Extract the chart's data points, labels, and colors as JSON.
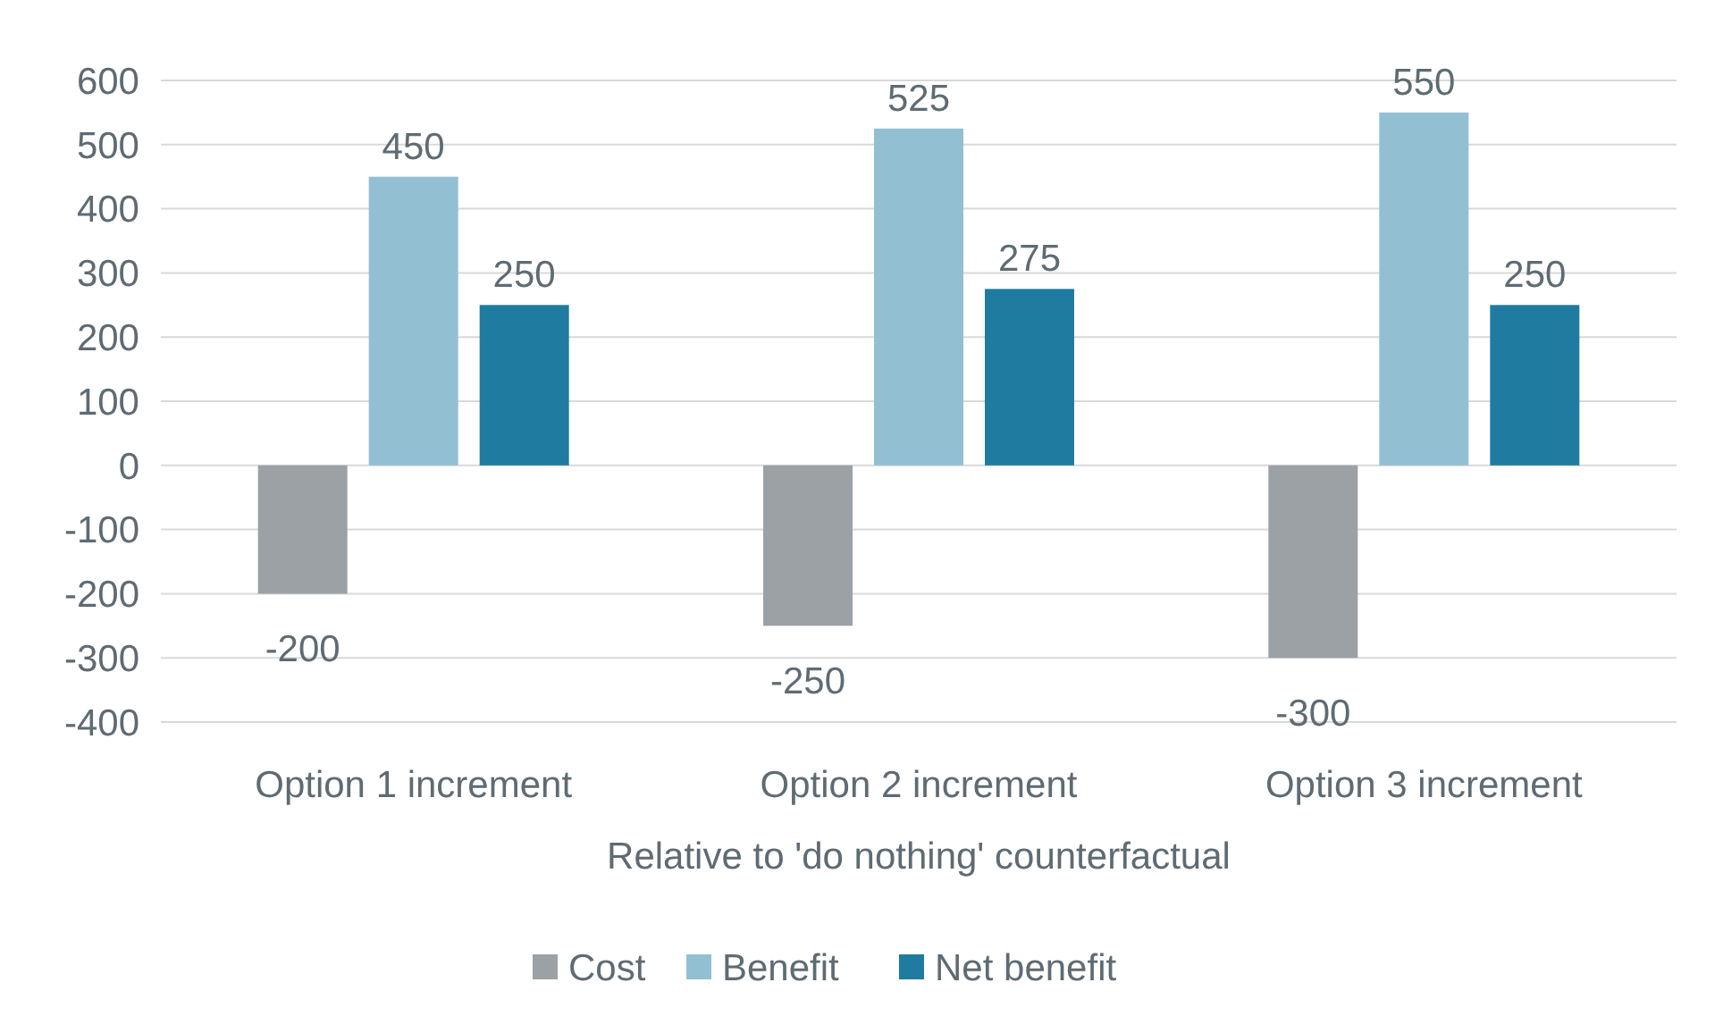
{
  "chart_data": {
    "type": "bar",
    "xlabel": "Relative to 'do nothing' counterfactual",
    "categories": [
      "Option 1 increment",
      "Option 2 increment",
      "Option 3 increment"
    ],
    "series": [
      {
        "name": "Cost",
        "color": "#9ba1a5",
        "values": [
          -200,
          -250,
          -300
        ]
      },
      {
        "name": "Benefit",
        "color": "#93bfd3",
        "values": [
          450,
          525,
          550
        ]
      },
      {
        "name": "Net benefit",
        "color": "#1f7ca0",
        "values": [
          250,
          275,
          250
        ]
      }
    ],
    "ylim": [
      -400,
      600
    ],
    "yticks": [
      -400,
      -300,
      -200,
      -100,
      0,
      100,
      200,
      300,
      400,
      500,
      600
    ],
    "grid": "y",
    "legend": "bottom",
    "data_labels": true
  }
}
